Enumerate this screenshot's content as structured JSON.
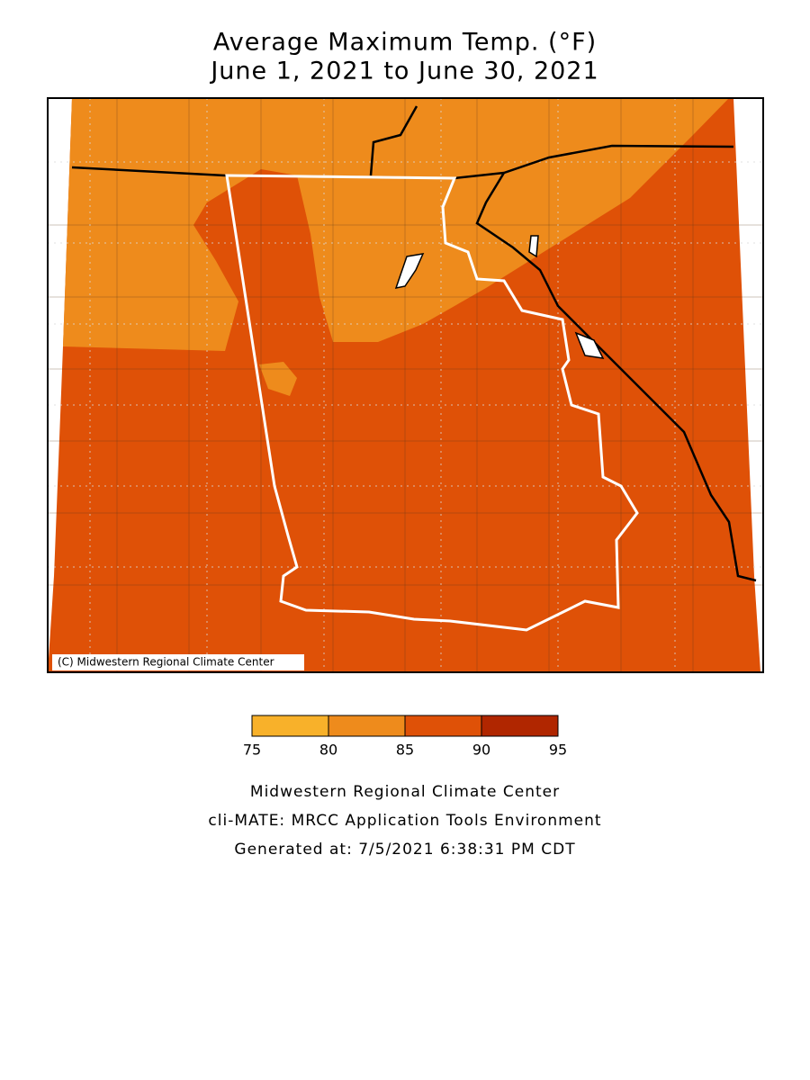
{
  "title": [
    "Average Maximum Temp. (°F)",
    "June 1, 2021 to June 30, 2021"
  ],
  "map": {
    "copyright": "(C) Midwestern Regional Climate Center"
  },
  "legend": {
    "ticks": [
      75,
      80,
      85,
      90,
      95
    ],
    "colors": [
      "#f8b12a",
      "#ee8b1c",
      "#df5107",
      "#b02600"
    ]
  },
  "footer": [
    "Midwestern Regional Climate Center",
    "cli-MATE: MRCC Application Tools Environment",
    "Generated at: 7/5/2021 6:38:31 PM CDT"
  ]
}
